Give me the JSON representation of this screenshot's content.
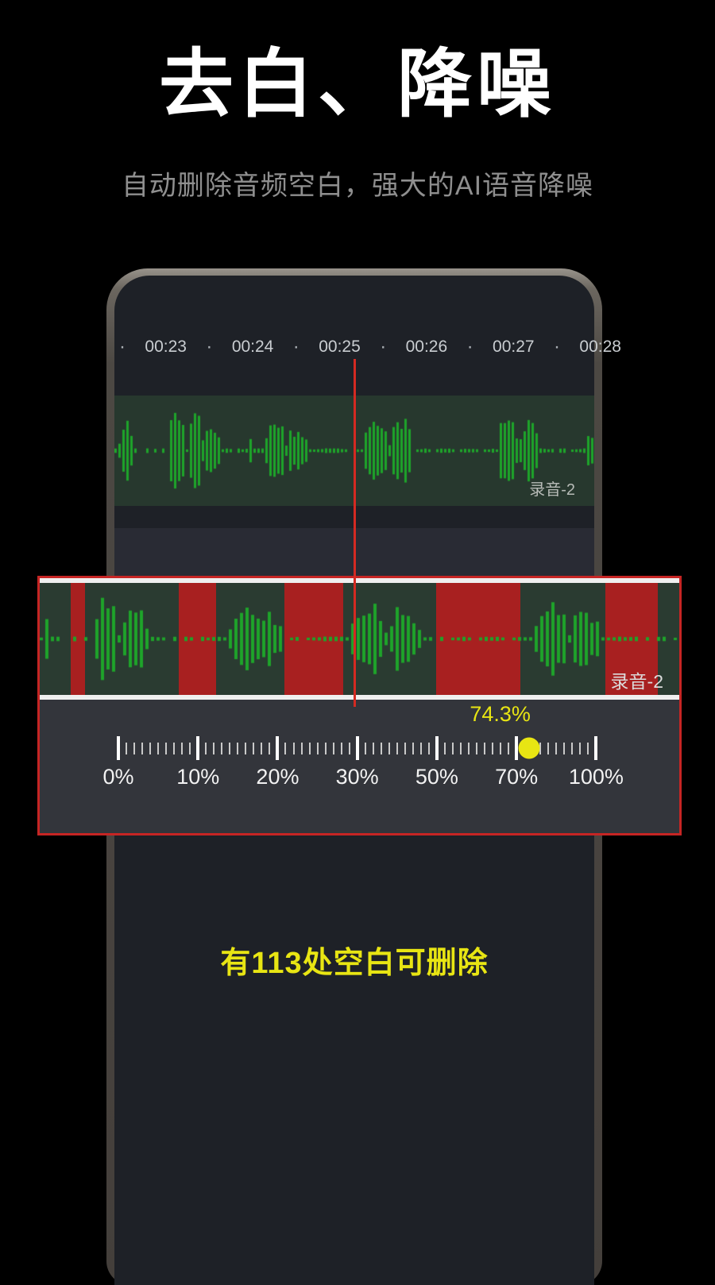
{
  "page": {
    "title": "去白、降噪",
    "subtitle": "自动删除音频空白，强大的AI语音降噪",
    "banner_text": "有113处空白可删除"
  },
  "colors": {
    "accent": "#e8e513",
    "waveform_green": "#1ea42a",
    "blank_red": "#a82020",
    "playhead_red": "#d42a22",
    "callout_border": "#c62524",
    "track_bg_green": "#27382e",
    "slider_bg": "#33353b",
    "screen_bg": "#1e2127"
  },
  "phone": {
    "timeline": {
      "labels": [
        "00:23",
        "00:24",
        "00:25",
        "00:26",
        "00:27",
        "00:28"
      ],
      "separator": "·"
    },
    "track_label": "录音-2"
  },
  "callout": {
    "track_label": "录音-2",
    "blank_regions_pct": [
      [
        4.8,
        7.1
      ],
      [
        21.7,
        27.6
      ],
      [
        38.3,
        47.5
      ],
      [
        62.0,
        75.1
      ],
      [
        88.5,
        96.7
      ]
    ],
    "slider": {
      "value": "74.3%",
      "value_position_pct": 72,
      "thumb_position_pct": 76.5,
      "tick_labels": [
        "0%",
        "10%",
        "20%",
        "30%",
        "50%",
        "70%",
        "100%"
      ],
      "tick_positions_pct": [
        12.3,
        24.75,
        37.2,
        49.65,
        62.1,
        74.55,
        87.0
      ],
      "minor_ticks_per_interval": 9
    }
  },
  "waveform": {
    "phone_track_clusters": [
      [
        0.7,
        3.5,
        0.75
      ],
      [
        9.4,
        9.9,
        0.35
      ],
      [
        10.9,
        14.7,
        0.95
      ],
      [
        14.9,
        18.4,
        0.8
      ],
      [
        18.5,
        22.0,
        0.65
      ],
      [
        27.7,
        28.4,
        0.3
      ],
      [
        31.3,
        35.3,
        0.85
      ],
      [
        35.4,
        40.2,
        0.55
      ],
      [
        51.8,
        57.0,
        0.9
      ],
      [
        57.0,
        62.0,
        0.75
      ],
      [
        79.6,
        84.0,
        0.85
      ],
      [
        84.0,
        88.3,
        0.6
      ],
      [
        97.8,
        100.0,
        0.55
      ]
    ],
    "callout_clusters": [
      [
        0.0,
        1.6,
        0.65
      ],
      [
        8.2,
        12.2,
        0.9
      ],
      [
        12.2,
        17.0,
        0.72
      ],
      [
        29.2,
        38.0,
        0.65
      ],
      [
        48.4,
        54.0,
        0.9
      ],
      [
        54.0,
        59.6,
        0.7
      ],
      [
        77.0,
        82.5,
        0.88
      ],
      [
        82.5,
        87.5,
        0.65
      ]
    ]
  }
}
